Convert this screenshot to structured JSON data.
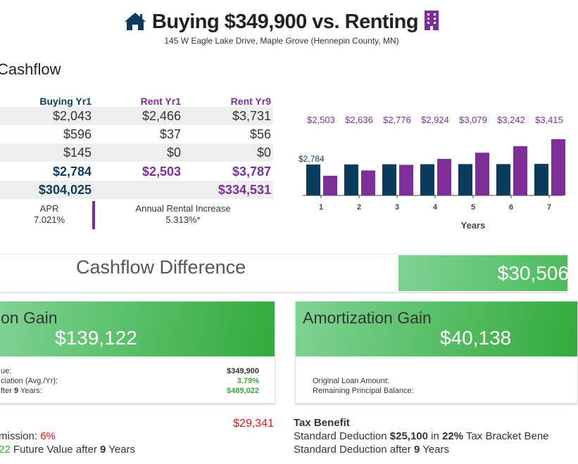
{
  "header": {
    "title": "Buying $349,900 vs. Renting",
    "subtitle": "145 W Eagle Lake Drive, Maple Grove (Hennepin County, MN)",
    "icons": [
      "house-icon",
      "building-icon"
    ]
  },
  "cashflow": {
    "heading": "Cashflow",
    "columns": [
      "Buying Yr1",
      "Rent Yr1",
      "Rent Yr9"
    ],
    "rows": [
      [
        "$2,043",
        "$2,466",
        "$3,731"
      ],
      [
        "$596",
        "$37",
        "$56"
      ],
      [
        "$145",
        "$0",
        "$0"
      ],
      [
        "$2,784",
        "$2,503",
        "$3,787"
      ],
      [
        "$304,025",
        "",
        "$334,531"
      ]
    ],
    "apr_label": "APR",
    "apr_value": "7.021%",
    "rent_increase_label": "Annual Rental Increase",
    "rent_increase_value": "5.313%*"
  },
  "chart_data": {
    "type": "bar",
    "categories": [
      "1",
      "2",
      "3",
      "4",
      "5",
      "6",
      "7"
    ],
    "xlabel": "Years",
    "series": [
      {
        "name": "Buying",
        "color": "#0b3c5d",
        "values": [
          2784,
          2786,
          2790,
          2792,
          2795,
          2795,
          2800
        ],
        "label": "$2,784"
      },
      {
        "name": "Renting",
        "color": "#7e2f97",
        "values": [
          2503,
          2636,
          2776,
          2924,
          3079,
          3242,
          3415
        ],
        "labels": [
          "$2,503",
          "$2,636",
          "$2,776",
          "$2,924",
          "$3,079",
          "$3,242",
          "$3,415"
        ]
      }
    ]
  },
  "difference": {
    "label": "Cashflow Difference",
    "value": "$30,506"
  },
  "appreciation": {
    "title": "on Gain",
    "value": "$139,122",
    "lines": [
      {
        "label": "ue:",
        "value": "$349,900"
      },
      {
        "label": "ciation (Avg./Yr):",
        "value": "3.79%"
      },
      {
        "label_pre": "fter ",
        "label_bold": "9",
        "label_post": " Years:",
        "value": "$489,022"
      }
    ]
  },
  "amortization": {
    "title": "Amortization Gain",
    "value": "$40,138",
    "lines": [
      "Original Loan Amount:",
      "Remaining Principal Balance:"
    ]
  },
  "commission": {
    "amount": "$29,341",
    "line1_pre": "mission: ",
    "line1_pct": "6%",
    "line2_val": "22",
    "line2_mid": " Future Value after ",
    "line2_years": "9",
    "line2_post": " Years"
  },
  "tax": {
    "heading": "Tax Benefit",
    "l1_a": "Standard Deduction ",
    "l1_b": "$25,100",
    "l1_c": " in ",
    "l1_d": "22%",
    "l1_e": " Tax Bracket Bene",
    "l2_a": "Standard Deduction after ",
    "l2_b": "9",
    "l2_c": " Years"
  },
  "colors": {
    "navy": "#0b3c5d",
    "purple": "#7e2f97",
    "green": "#3aa83a",
    "red": "#e8141a"
  }
}
